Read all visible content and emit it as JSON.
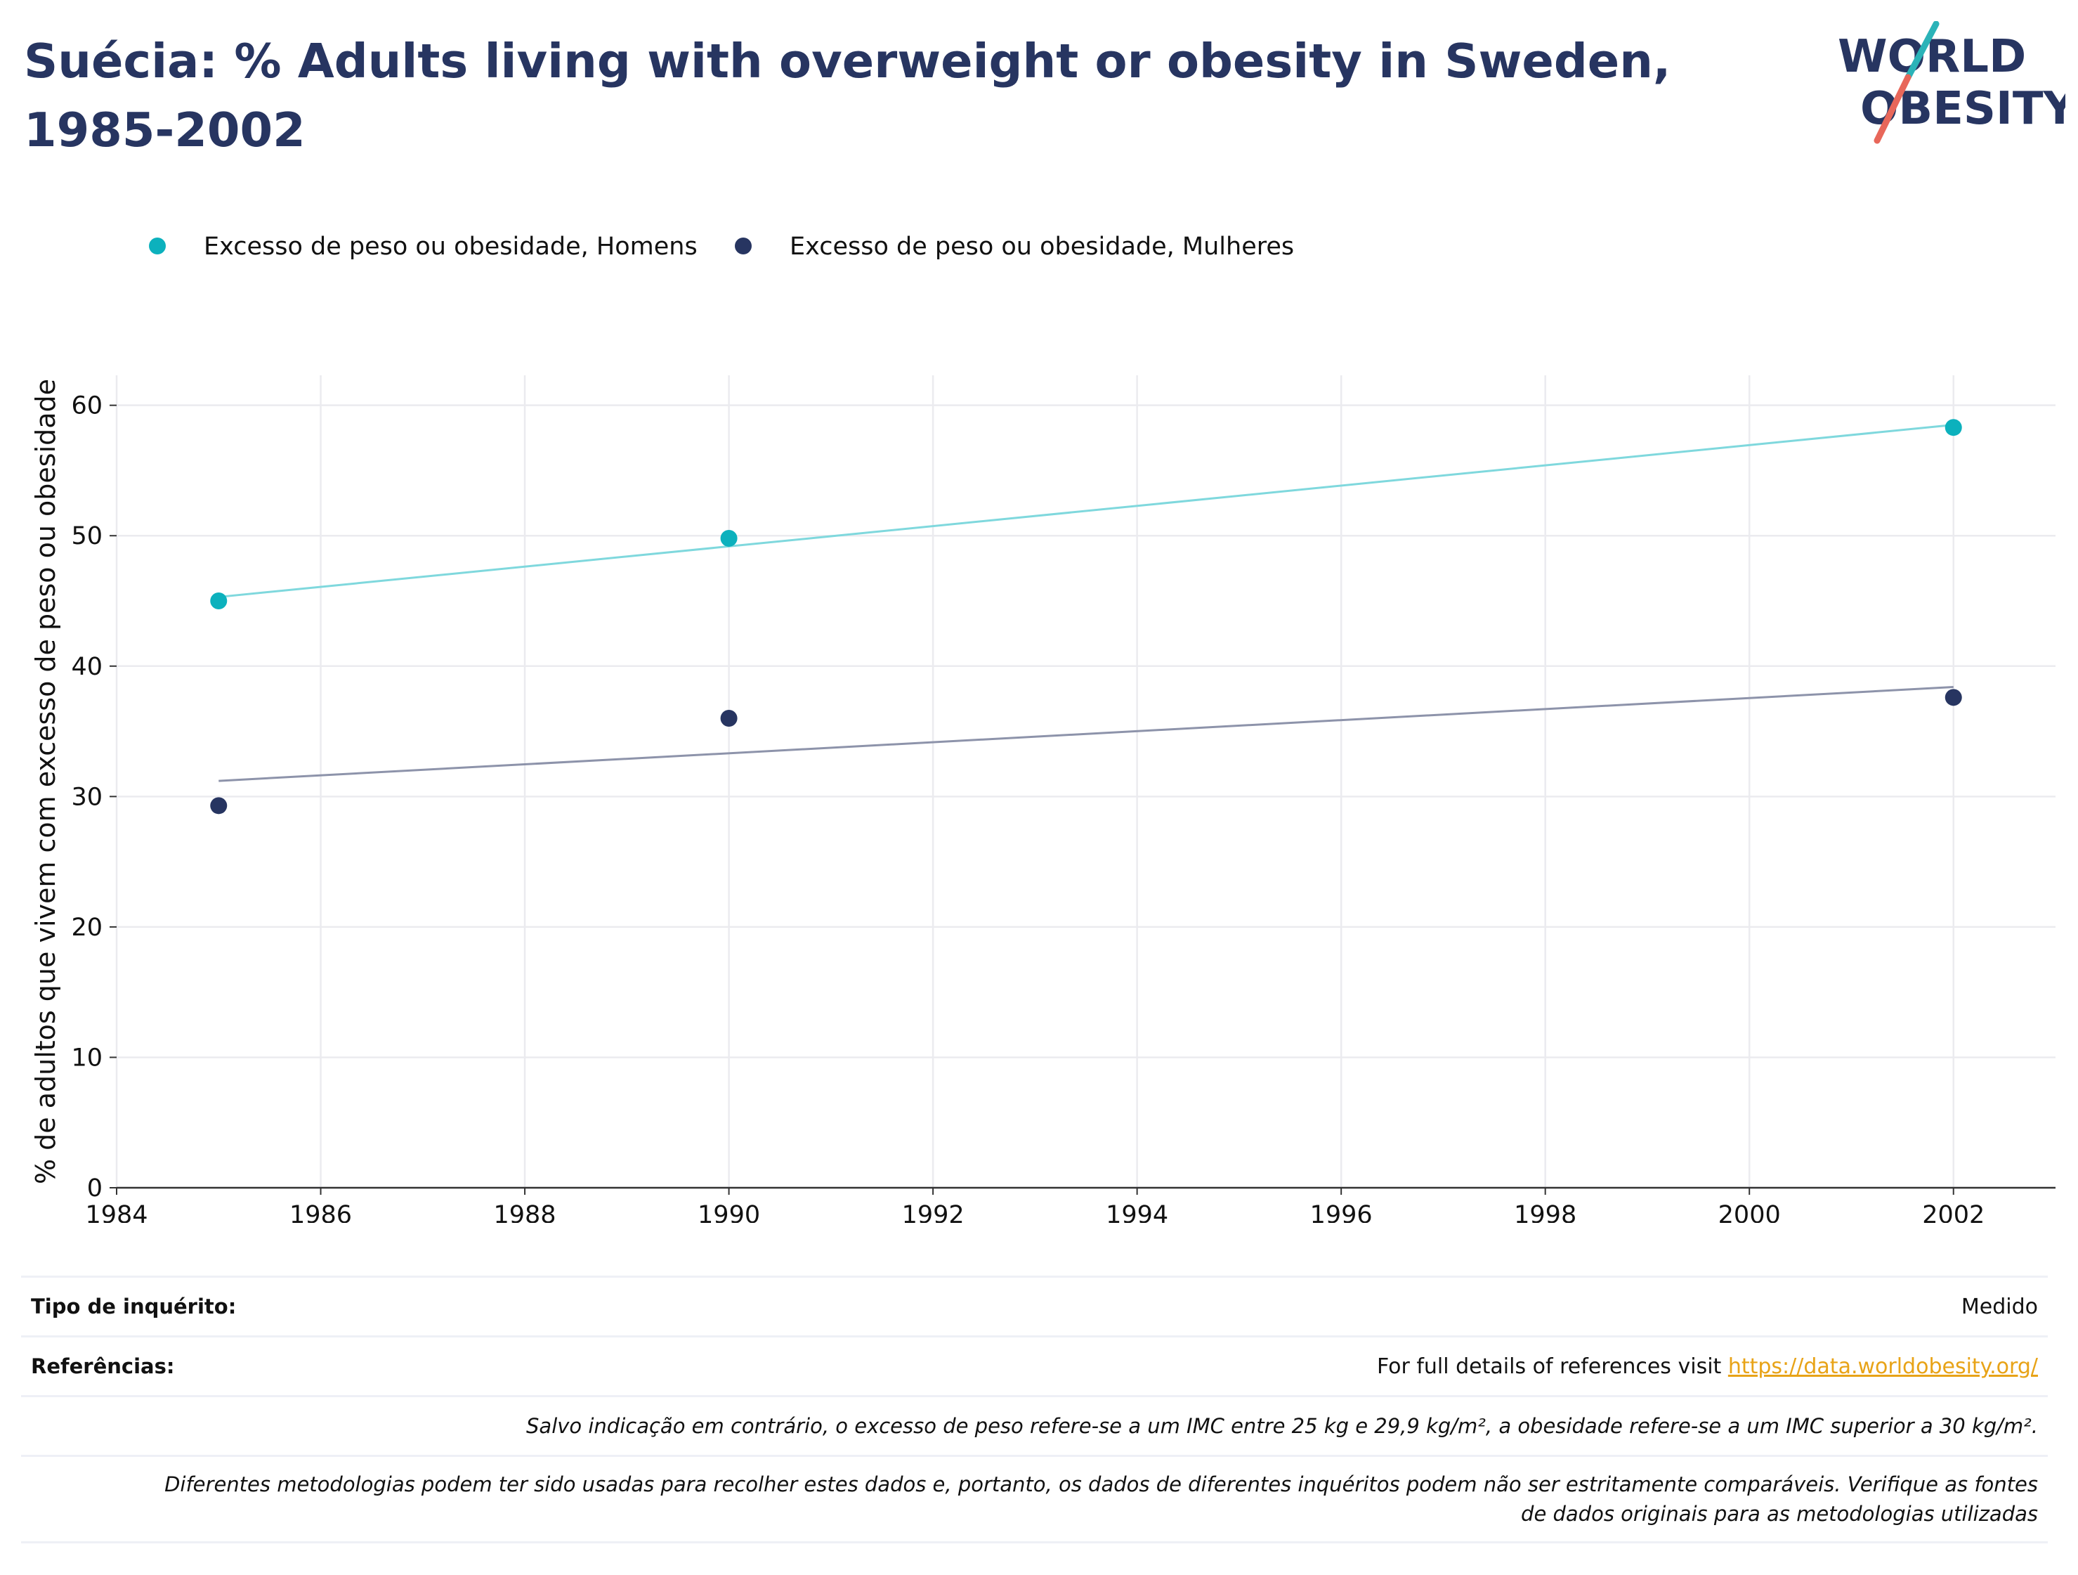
{
  "title": "Suécia: % Adults living with overweight or obesity in Sweden, 1985-2002",
  "logo": {
    "line1": "WORLD",
    "line2": "OBESITY",
    "colors": {
      "text": "#273561",
      "slash_top": "#2bb3b8",
      "slash_bottom": "#e8675a"
    }
  },
  "colors": {
    "men": "#0cb1bd",
    "women": "#273561",
    "men_trend": "#7fd8dd",
    "women_trend": "#8d93aa",
    "grid": "#ebebef",
    "axis": "#333333"
  },
  "chart_data": {
    "type": "scatter",
    "title": "Suécia: % Adults living with overweight or obesity in Sweden, 1985-2002",
    "xlabel": "",
    "ylabel": "% de adultos que vivem com excesso de peso ou obesidade",
    "xlim": [
      1984,
      2003
    ],
    "ylim": [
      0,
      62.3
    ],
    "xticks": [
      1984,
      1986,
      1988,
      1990,
      1992,
      1994,
      1996,
      1998,
      2000,
      2002
    ],
    "yticks": [
      0,
      10,
      20,
      30,
      40,
      50,
      60
    ],
    "grid": true,
    "legend_position": "top-left",
    "series": [
      {
        "name": "Excesso de peso ou obesidade, Homens",
        "x": [
          1985,
          1990,
          2002
        ],
        "y": [
          45.0,
          49.8,
          58.3
        ],
        "trend": {
          "x": [
            1985,
            2002
          ],
          "y": [
            45.3,
            58.5
          ]
        }
      },
      {
        "name": "Excesso de peso ou obesidade, Mulheres",
        "x": [
          1985,
          1990,
          2002
        ],
        "y": [
          29.3,
          36.0,
          37.6
        ],
        "trend": {
          "x": [
            1985,
            2002
          ],
          "y": [
            31.2,
            38.4
          ]
        }
      }
    ]
  },
  "footer": {
    "survey_label": "Tipo de inquérito:",
    "survey_value": "Medido",
    "refs_label": "Referências:",
    "refs_text": "For full details of references visit ",
    "refs_link": "https://data.worldobesity.org/",
    "note1": "Salvo indicação em contrário, o excesso de peso refere-se a um IMC entre 25 kg e 29,9 kg/m², a obesidade refere-se a um IMC superior a 30 kg/m².",
    "note2_line1": "Diferentes metodologias podem ter sido usadas para recolher estes dados e, portanto, os dados de diferentes inquéritos podem não ser estritamente comparáveis. Verifique as fontes",
    "note2_line2": "de dados originais para as metodologias utilizadas"
  }
}
